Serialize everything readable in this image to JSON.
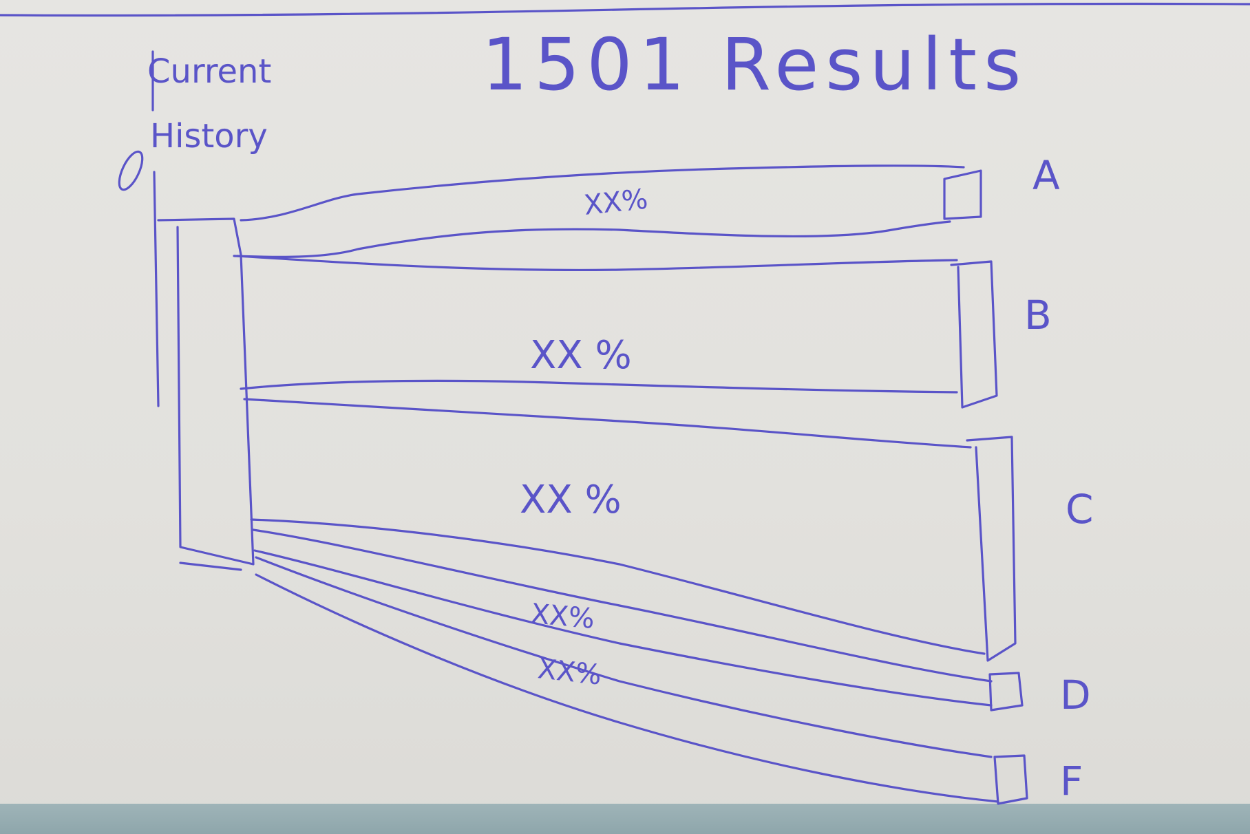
{
  "title": "1501 Results",
  "axis_label_line1": "Current",
  "axis_label_line2": "History",
  "flows": [
    {
      "id": "A",
      "category": "A",
      "value_label": "XX%"
    },
    {
      "id": "B",
      "category": "B",
      "value_label": "XX %"
    },
    {
      "id": "C",
      "category": "C",
      "value_label": "XX %"
    },
    {
      "id": "D",
      "category": "D",
      "value_label": "XX%"
    },
    {
      "id": "F",
      "category": "F",
      "value_label": "XX%"
    }
  ],
  "colors": {
    "ink": "#5a54c8",
    "paper": "#e4e2de",
    "table": "#9fb4b8"
  }
}
